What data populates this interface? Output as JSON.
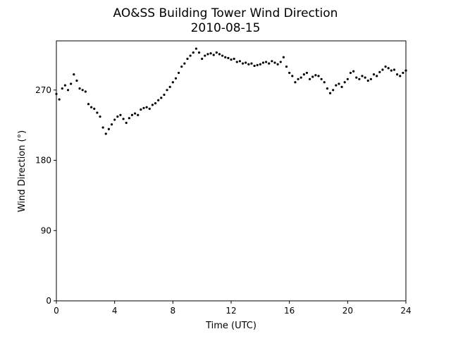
{
  "chart_data": {
    "type": "scatter",
    "title": "AO&SS Building Tower Wind Direction",
    "subtitle": "2010-08-15",
    "x_label": "Time (UTC)",
    "y_label": "Wind Direction (°)",
    "xlim": [
      0,
      24
    ],
    "xticks": [
      0,
      4,
      8,
      12,
      16,
      20,
      24
    ],
    "ylim": [
      0,
      333
    ],
    "yticks": [
      0,
      90,
      180,
      270
    ],
    "grid": false,
    "series": [
      {
        "color": "#000000",
        "x": [
          0,
          0.2,
          0.4,
          0.6,
          0.8,
          1.0,
          1.2,
          1.4,
          1.6,
          1.8,
          2.0,
          2.2,
          2.4,
          2.6,
          2.8,
          3.0,
          3.2,
          3.4,
          3.6,
          3.8,
          4.0,
          4.2,
          4.4,
          4.6,
          4.8,
          5.0,
          5.2,
          5.4,
          5.6,
          5.8,
          6.0,
          6.2,
          6.4,
          6.6,
          6.8,
          7.0,
          7.2,
          7.4,
          7.6,
          7.8,
          8.0,
          8.2,
          8.4,
          8.6,
          8.8,
          9.0,
          9.2,
          9.4,
          9.6,
          9.8,
          10.0,
          10.2,
          10.4,
          10.6,
          10.8,
          11.0,
          11.2,
          11.4,
          11.6,
          11.8,
          12.0,
          12.2,
          12.4,
          12.6,
          12.8,
          13.0,
          13.2,
          13.4,
          13.6,
          13.8,
          14.0,
          14.2,
          14.4,
          14.6,
          14.8,
          15.0,
          15.2,
          15.4,
          15.6,
          15.8,
          16.0,
          16.2,
          16.4,
          16.6,
          16.8,
          17.0,
          17.2,
          17.4,
          17.6,
          17.8,
          18.0,
          18.2,
          18.4,
          18.6,
          18.8,
          19.0,
          19.2,
          19.4,
          19.6,
          19.8,
          20.0,
          20.2,
          20.4,
          20.6,
          20.8,
          21.0,
          21.2,
          21.4,
          21.6,
          21.8,
          22.0,
          22.2,
          22.4,
          22.6,
          22.8,
          23.0,
          23.2,
          23.4,
          23.6,
          23.8,
          24.0
        ],
        "values": [
          265,
          258,
          272,
          276,
          270,
          278,
          290,
          282,
          272,
          270,
          268,
          252,
          248,
          246,
          241,
          236,
          222,
          214,
          220,
          226,
          232,
          236,
          238,
          233,
          228,
          234,
          238,
          240,
          238,
          245,
          247,
          248,
          246,
          251,
          253,
          257,
          260,
          264,
          270,
          274,
          280,
          285,
          292,
          300,
          304,
          310,
          314,
          318,
          323,
          318,
          310,
          314,
          316,
          317,
          315,
          318,
          316,
          314,
          312,
          311,
          309,
          310,
          306,
          307,
          304,
          305,
          303,
          304,
          301,
          302,
          303,
          305,
          306,
          304,
          307,
          305,
          303,
          306,
          312,
          300,
          292,
          288,
          280,
          284,
          286,
          290,
          292,
          284,
          287,
          289,
          288,
          284,
          280,
          272,
          266,
          270,
          276,
          278,
          274,
          280,
          284,
          292,
          294,
          286,
          284,
          288,
          286,
          282,
          284,
          290,
          288,
          293,
          296,
          300,
          298,
          295,
          296,
          290,
          288,
          292,
          295
        ]
      }
    ]
  }
}
